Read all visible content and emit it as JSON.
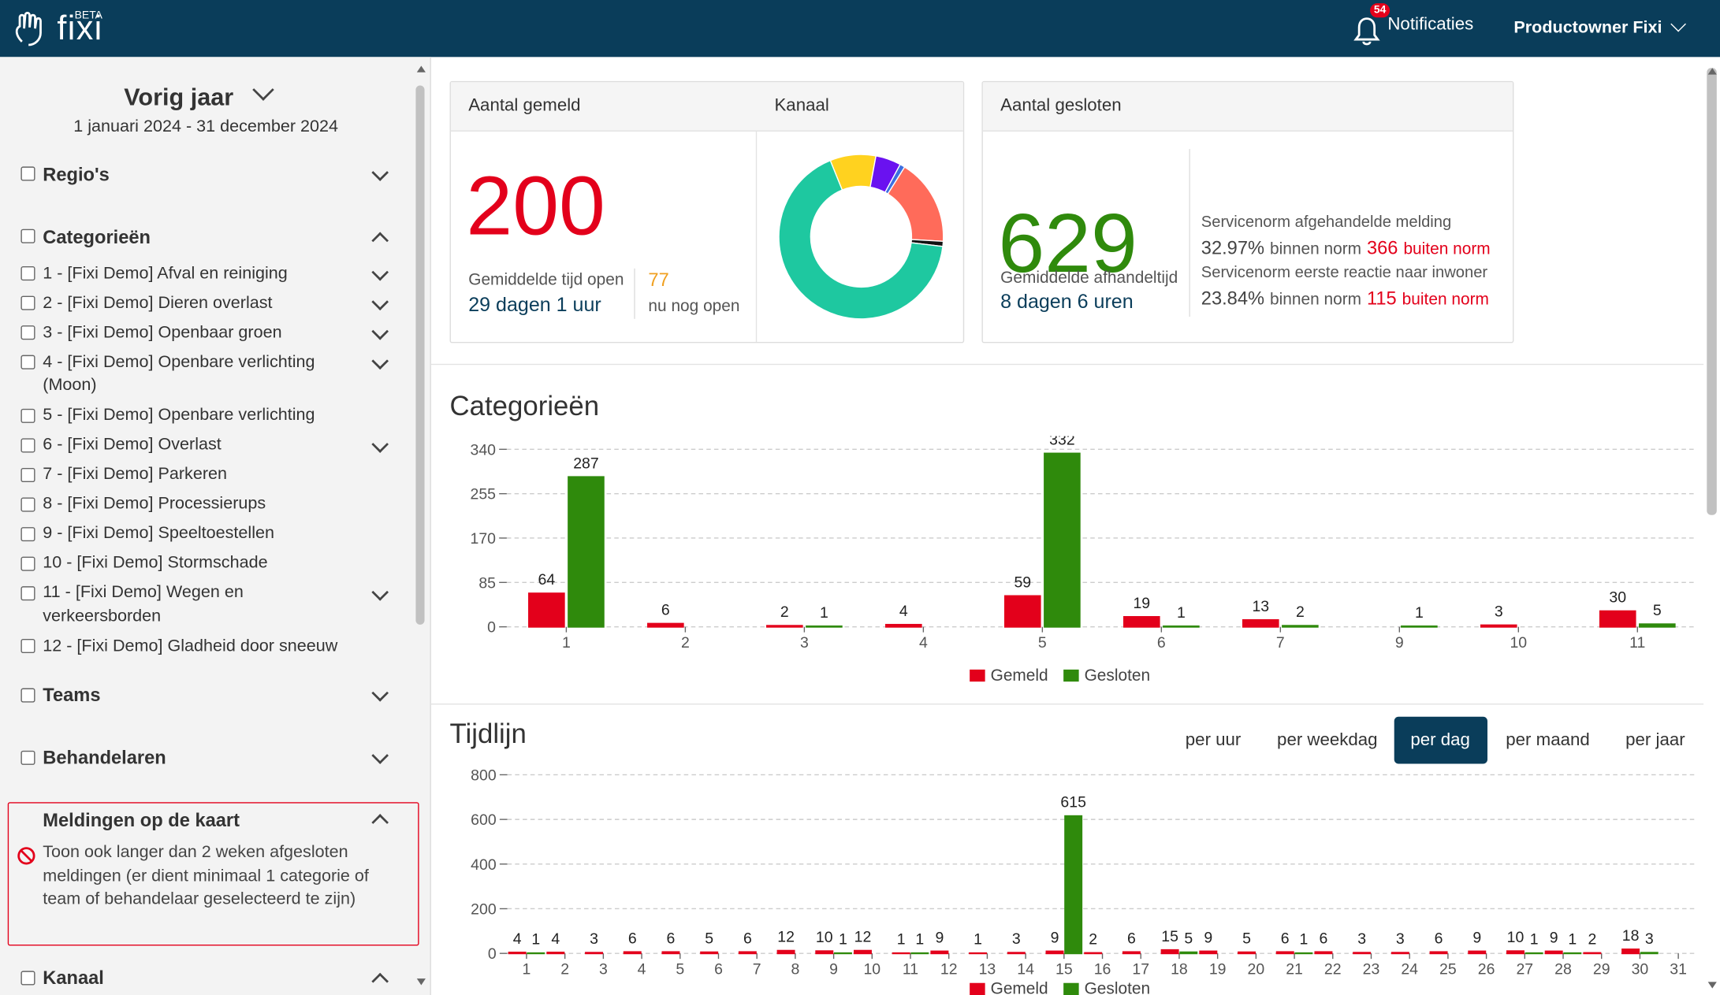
{
  "header": {
    "logo": "fixi",
    "beta": "BETA",
    "notification_count": "54",
    "notifications": "Notificaties",
    "user": "Productowner Fixi"
  },
  "sidebar": {
    "period": "Vorig jaar",
    "date_range": "1 januari 2024 - 31 december 2024",
    "regions": "Regio's",
    "categories": {
      "title": "Categorieën",
      "items": [
        {
          "label": "1 - [Fixi Demo] Afval en reiniging",
          "expandable": true
        },
        {
          "label": "2 - [Fixi Demo] Dieren overlast",
          "expandable": true
        },
        {
          "label": "3 - [Fixi Demo] Openbaar groen",
          "expandable": true
        },
        {
          "label": "4 - [Fixi Demo] Openbare verlichting (Moon)",
          "expandable": true
        },
        {
          "label": "5 - [Fixi Demo] Openbare verlichting",
          "expandable": false
        },
        {
          "label": "6 - [Fixi Demo] Overlast",
          "expandable": true
        },
        {
          "label": "7 - [Fixi Demo] Parkeren",
          "expandable": false
        },
        {
          "label": "8 - [Fixi Demo] Processierups",
          "expandable": false
        },
        {
          "label": "9 - [Fixi Demo] Speeltoestellen",
          "expandable": false
        },
        {
          "label": "10 - [Fixi Demo] Stormschade",
          "expandable": false
        },
        {
          "label": "11 - [Fixi Demo] Wegen en verkeersborden",
          "expandable": true
        },
        {
          "label": "12 - [Fixi Demo] Gladheid door sneeuw",
          "expandable": false
        }
      ]
    },
    "teams": "Teams",
    "handlers": "Behandelaren",
    "map": {
      "title": "Meldingen op de kaart",
      "option": "Toon ook langer dan 2 weken afgesloten meldingen (er dient minimaal 1 categorie of team of behandelaar geselecteerd te zijn)"
    },
    "channel": "Kanaal"
  },
  "cards": {
    "reported": {
      "title": "Aantal gemeld",
      "count": 200,
      "avg_label": "Gemiddelde tijd open",
      "avg_value": "29 dagen 1 uur",
      "open_count": 77,
      "open_label": "nu nog open"
    },
    "channel": {
      "title": "Kanaal",
      "chart": {
        "type": "pie",
        "values": [
          9,
          5,
          1,
          17,
          1,
          67
        ],
        "colors": [
          "#ffd21f",
          "#6a12f0",
          "#3d6fe0",
          "#ff6b5a",
          "#111111",
          "#1ec8a0"
        ]
      }
    },
    "closed": {
      "title": "Aantal gesloten",
      "count": 629,
      "avg_label": "Gemiddelde afhandeltijd",
      "avg_value": "8 dagen 6 uren",
      "norms": [
        {
          "title": "Servicenorm afgehandelde melding",
          "percent": "32.97%",
          "within": "binnen norm",
          "outside_count": 366,
          "outside": "buiten norm"
        },
        {
          "title": "Servicenorm eerste reactie naar inwoner",
          "percent": "23.84%",
          "within": "binnen norm",
          "outside_count": 115,
          "outside": "buiten norm"
        }
      ]
    }
  },
  "categories_chart": {
    "type": "bar",
    "title": "Categorieën",
    "categories": [
      "1",
      "2",
      "3",
      "4",
      "5",
      "6",
      "7",
      "9",
      "10",
      "11"
    ],
    "series": [
      {
        "name": "Gemeld",
        "color": "#e3001b",
        "values": [
          64,
          6,
          2,
          4,
          59,
          19,
          13,
          null,
          3,
          30
        ]
      },
      {
        "name": "Gesloten",
        "color": "#2f8a0c",
        "values": [
          287,
          null,
          1,
          null,
          332,
          1,
          2,
          1,
          null,
          5
        ]
      }
    ],
    "ylim": [
      0,
      340
    ],
    "yticks": [
      0,
      85,
      170,
      255,
      340
    ],
    "grid": true
  },
  "timeline_chart": {
    "type": "bar",
    "title": "Tijdlijn",
    "periods": [
      "per uur",
      "per weekdag",
      "per dag",
      "per maand",
      "per jaar"
    ],
    "active_period": 2,
    "categories": [
      "1",
      "2",
      "3",
      "4",
      "5",
      "6",
      "7",
      "8",
      "9",
      "10",
      "11",
      "12",
      "13",
      "14",
      "15",
      "16",
      "17",
      "18",
      "19",
      "20",
      "21",
      "22",
      "23",
      "24",
      "25",
      "26",
      "27",
      "28",
      "29",
      "30",
      "31"
    ],
    "series": [
      {
        "name": "Gemeld",
        "color": "#e3001b",
        "values": [
          4,
          4,
          3,
          6,
          6,
          5,
          6,
          12,
          10,
          12,
          1,
          9,
          1,
          3,
          9,
          2,
          6,
          15,
          9,
          5,
          6,
          6,
          3,
          3,
          6,
          9,
          10,
          9,
          2,
          18,
          null
        ]
      },
      {
        "name": "Gesloten",
        "color": "#2f8a0c",
        "values": [
          1,
          null,
          null,
          null,
          null,
          null,
          null,
          null,
          1,
          null,
          1,
          null,
          null,
          null,
          615,
          null,
          null,
          5,
          null,
          null,
          1,
          null,
          null,
          null,
          null,
          null,
          1,
          1,
          null,
          3,
          null
        ]
      }
    ],
    "ylim": [
      0,
      800
    ],
    "yticks": [
      0,
      200,
      400,
      600,
      800
    ],
    "grid": true
  }
}
